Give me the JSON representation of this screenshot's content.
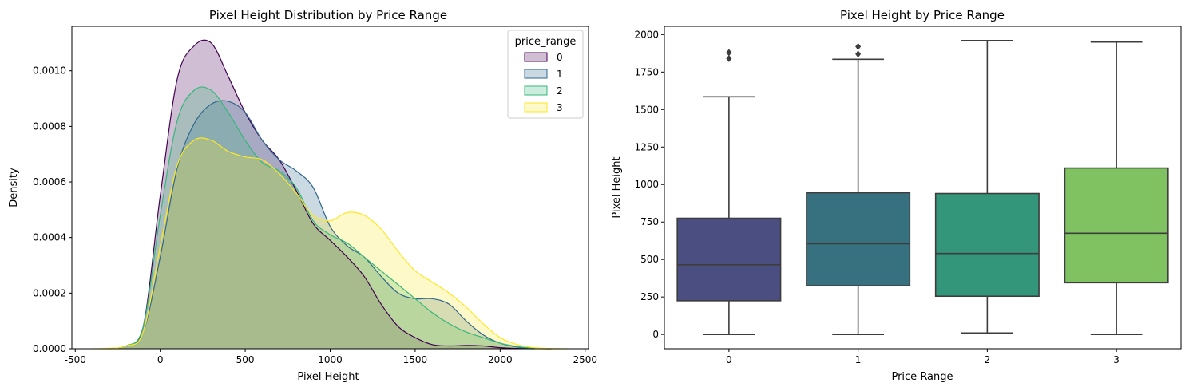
{
  "chart_data": [
    {
      "type": "area",
      "title": "Pixel Height Distribution by Price Range",
      "xlabel": "Pixel Height",
      "ylabel": "Density",
      "xlim": [
        -520,
        2520
      ],
      "ylim": [
        0,
        0.00116
      ],
      "xticks": [
        -500,
        0,
        500,
        1000,
        1500,
        2000,
        2500
      ],
      "yticks": [
        0,
        0.0002,
        0.0004,
        0.0006,
        0.0008,
        0.001
      ],
      "ytick_labels": [
        "0.0000",
        "0.0002",
        "0.0004",
        "0.0006",
        "0.0008",
        "0.0010"
      ],
      "legend": {
        "title": "price_range",
        "position": "top-right"
      },
      "series": [
        {
          "name": "0",
          "color": "#440154",
          "points": [
            [
              -300,
              0
            ],
            [
              -200,
              1e-05
            ],
            [
              -100,
              8e-05
            ],
            [
              0,
              0.00055
            ],
            [
              100,
              0.00097
            ],
            [
              200,
              0.00109
            ],
            [
              300,
              0.0011
            ],
            [
              400,
              0.00098
            ],
            [
              500,
              0.00085
            ],
            [
              600,
              0.00075
            ],
            [
              700,
              0.00068
            ],
            [
              800,
              0.00057
            ],
            [
              900,
              0.00045
            ],
            [
              1000,
              0.00039
            ],
            [
              1100,
              0.00033
            ],
            [
              1200,
              0.00026
            ],
            [
              1300,
              0.00016
            ],
            [
              1400,
              8e-05
            ],
            [
              1500,
              4e-05
            ],
            [
              1600,
              1.5e-05
            ],
            [
              1700,
              1e-05
            ],
            [
              1800,
              1.2e-05
            ],
            [
              1900,
              1e-05
            ],
            [
              2000,
              4e-06
            ],
            [
              2100,
              1e-06
            ],
            [
              2200,
              0
            ]
          ]
        },
        {
          "name": "1",
          "color": "#31688e",
          "points": [
            [
              -300,
              0
            ],
            [
              -200,
              1e-05
            ],
            [
              -100,
              6e-05
            ],
            [
              0,
              0.00033
            ],
            [
              100,
              0.00065
            ],
            [
              200,
              0.00081
            ],
            [
              300,
              0.00088
            ],
            [
              400,
              0.00089
            ],
            [
              500,
              0.00085
            ],
            [
              600,
              0.00075
            ],
            [
              700,
              0.00068
            ],
            [
              800,
              0.00064
            ],
            [
              900,
              0.00058
            ],
            [
              1000,
              0.00044
            ],
            [
              1100,
              0.00037
            ],
            [
              1200,
              0.00033
            ],
            [
              1300,
              0.00026
            ],
            [
              1400,
              0.0002
            ],
            [
              1500,
              0.00018
            ],
            [
              1600,
              0.00018
            ],
            [
              1700,
              0.00016
            ],
            [
              1800,
              0.0001
            ],
            [
              1900,
              5e-05
            ],
            [
              2000,
              2e-05
            ],
            [
              2100,
              6e-06
            ],
            [
              2200,
              1e-06
            ],
            [
              2300,
              0
            ]
          ]
        },
        {
          "name": "2",
          "color": "#35b779",
          "points": [
            [
              -300,
              0
            ],
            [
              -200,
              1e-05
            ],
            [
              -100,
              8e-05
            ],
            [
              0,
              0.00048
            ],
            [
              100,
              0.00082
            ],
            [
              200,
              0.00093
            ],
            [
              300,
              0.00093
            ],
            [
              400,
              0.00085
            ],
            [
              500,
              0.00075
            ],
            [
              600,
              0.00067
            ],
            [
              700,
              0.00064
            ],
            [
              800,
              0.00058
            ],
            [
              900,
              0.00046
            ],
            [
              1000,
              0.00041
            ],
            [
              1100,
              0.00038
            ],
            [
              1200,
              0.00033
            ],
            [
              1300,
              0.00028
            ],
            [
              1400,
              0.00023
            ],
            [
              1500,
              0.00018
            ],
            [
              1600,
              0.00013
            ],
            [
              1700,
              9e-05
            ],
            [
              1800,
              6e-05
            ],
            [
              1900,
              4e-05
            ],
            [
              2000,
              2e-05
            ],
            [
              2100,
              8e-06
            ],
            [
              2200,
              2e-06
            ],
            [
              2300,
              0
            ]
          ]
        },
        {
          "name": "3",
          "color": "#fde725",
          "points": [
            [
              -400,
              0
            ],
            [
              -300,
              2e-06
            ],
            [
              -200,
              1e-05
            ],
            [
              -100,
              6e-05
            ],
            [
              0,
              0.00037
            ],
            [
              100,
              0.00066
            ],
            [
              200,
              0.00075
            ],
            [
              300,
              0.00075
            ],
            [
              400,
              0.00071
            ],
            [
              500,
              0.00069
            ],
            [
              600,
              0.00068
            ],
            [
              700,
              0.00063
            ],
            [
              800,
              0.00056
            ],
            [
              900,
              0.00048
            ],
            [
              1000,
              0.00046
            ],
            [
              1100,
              0.00049
            ],
            [
              1200,
              0.00048
            ],
            [
              1300,
              0.00043
            ],
            [
              1400,
              0.00035
            ],
            [
              1500,
              0.00028
            ],
            [
              1600,
              0.00024
            ],
            [
              1700,
              0.0002
            ],
            [
              1800,
              0.00015
            ],
            [
              1900,
              9e-05
            ],
            [
              2000,
              4e-05
            ],
            [
              2100,
              1.5e-05
            ],
            [
              2200,
              4e-06
            ],
            [
              2300,
              1e-06
            ],
            [
              2400,
              0
            ]
          ]
        }
      ]
    },
    {
      "type": "box",
      "title": "Pixel Height by Price Range",
      "xlabel": "Price Range",
      "ylabel": "Pixel Height",
      "ylim": [
        -95,
        2055
      ],
      "yticks": [
        0,
        250,
        500,
        750,
        1000,
        1250,
        1500,
        1750,
        2000
      ],
      "categories": [
        "0",
        "1",
        "2",
        "3"
      ],
      "boxes": [
        {
          "category": "0",
          "color": "#4a4e80",
          "whisker_low": 0,
          "q1": 225,
          "median": 465,
          "q3": 775,
          "whisker_high": 1585,
          "outliers": [
            1840,
            1880
          ]
        },
        {
          "category": "1",
          "color": "#37717f",
          "whisker_low": 0,
          "q1": 325,
          "median": 605,
          "q3": 945,
          "whisker_high": 1835,
          "outliers": [
            1870,
            1920
          ]
        },
        {
          "category": "2",
          "color": "#33967a",
          "whisker_low": 10,
          "q1": 255,
          "median": 540,
          "q3": 940,
          "whisker_high": 1960,
          "outliers": []
        },
        {
          "category": "3",
          "color": "#80c261",
          "whisker_low": 0,
          "q1": 345,
          "median": 675,
          "q3": 1110,
          "whisker_high": 1950,
          "outliers": []
        }
      ]
    }
  ]
}
